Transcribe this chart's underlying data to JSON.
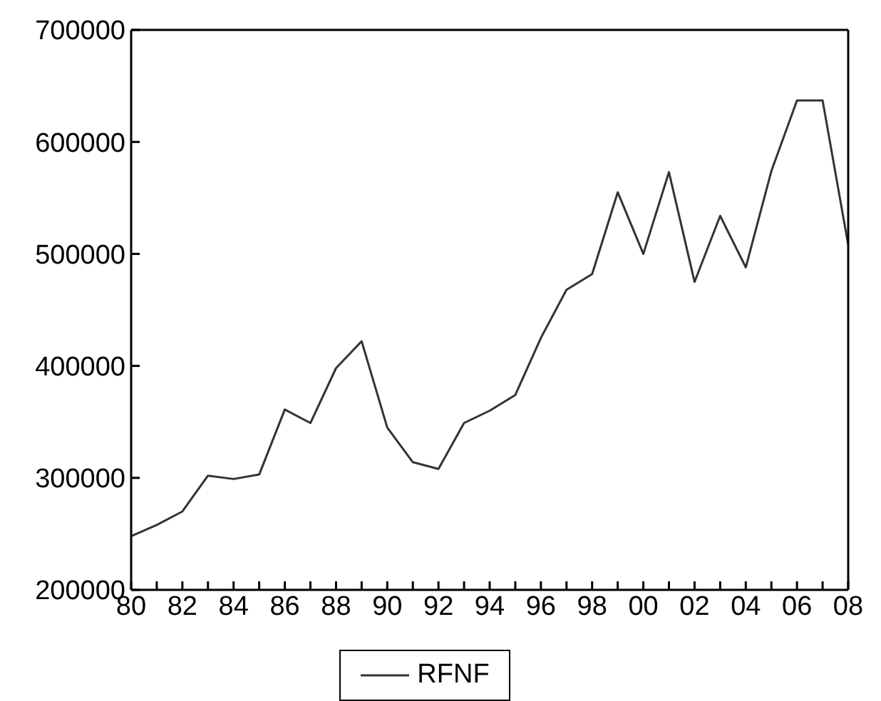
{
  "chart_data": {
    "type": "line",
    "x": [
      1980,
      1981,
      1982,
      1983,
      1984,
      1985,
      1986,
      1987,
      1988,
      1989,
      1990,
      1991,
      1992,
      1993,
      1994,
      1995,
      1996,
      1997,
      1998,
      1999,
      2000,
      2001,
      2002,
      2003,
      2004,
      2005,
      2006,
      2007,
      2008
    ],
    "series": [
      {
        "name": "RFNF",
        "color": "#333333",
        "values": [
          248000,
          258000,
          270000,
          302000,
          299000,
          303000,
          361000,
          349000,
          398000,
          422000,
          345000,
          314000,
          308000,
          349000,
          360000,
          374000,
          425000,
          468000,
          482000,
          555000,
          500000,
          573000,
          475000,
          534000,
          488000,
          574000,
          637000,
          637000,
          508000
        ]
      }
    ],
    "xlim": [
      1980,
      2008
    ],
    "xticks": [
      {
        "value": 1980,
        "label": "80"
      },
      {
        "value": 1981,
        "label": null
      },
      {
        "value": 1982,
        "label": "82"
      },
      {
        "value": 1983,
        "label": null
      },
      {
        "value": 1984,
        "label": "84"
      },
      {
        "value": 1985,
        "label": null
      },
      {
        "value": 1986,
        "label": "86"
      },
      {
        "value": 1987,
        "label": null
      },
      {
        "value": 1988,
        "label": "88"
      },
      {
        "value": 1989,
        "label": null
      },
      {
        "value": 1990,
        "label": "90"
      },
      {
        "value": 1991,
        "label": null
      },
      {
        "value": 1992,
        "label": "92"
      },
      {
        "value": 1993,
        "label": null
      },
      {
        "value": 1994,
        "label": "94"
      },
      {
        "value": 1995,
        "label": null
      },
      {
        "value": 1996,
        "label": "96"
      },
      {
        "value": 1997,
        "label": null
      },
      {
        "value": 1998,
        "label": "98"
      },
      {
        "value": 1999,
        "label": null
      },
      {
        "value": 2000,
        "label": "00"
      },
      {
        "value": 2001,
        "label": null
      },
      {
        "value": 2002,
        "label": "02"
      },
      {
        "value": 2003,
        "label": null
      },
      {
        "value": 2004,
        "label": "04"
      },
      {
        "value": 2005,
        "label": null
      },
      {
        "value": 2006,
        "label": "06"
      },
      {
        "value": 2007,
        "label": null
      },
      {
        "value": 2008,
        "label": "08"
      }
    ],
    "ylim": [
      200000,
      700000
    ],
    "yticks": [
      200000,
      300000,
      400000,
      500000,
      600000,
      700000
    ],
    "grid": false,
    "legend": "bottom",
    "marker": "none",
    "line_style": "solid"
  }
}
